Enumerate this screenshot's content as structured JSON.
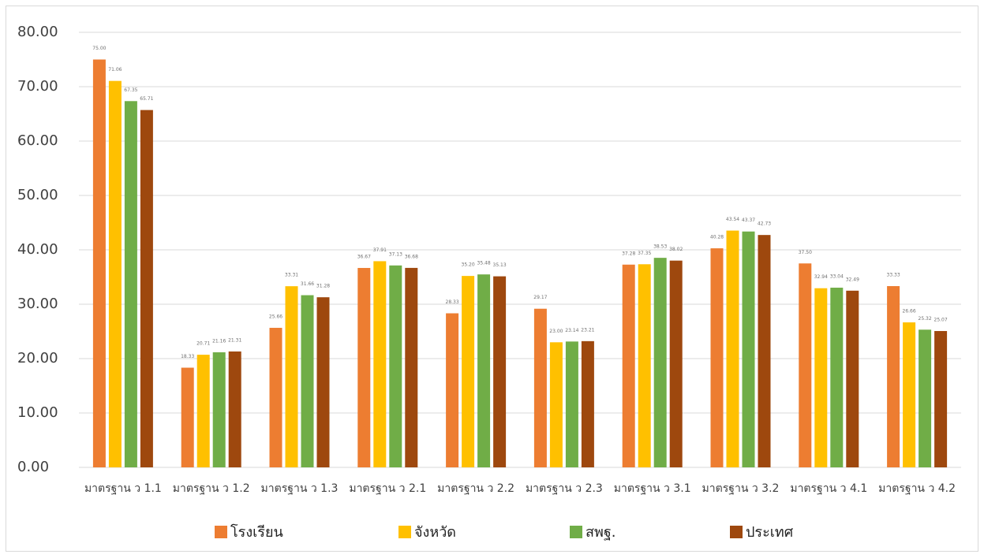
{
  "chart_data": {
    "type": "bar",
    "categories": [
      "มาตรฐาน ว 1.1",
      "มาตรฐาน ว 1.2",
      "มาตรฐาน ว 1.3",
      "มาตรฐาน ว 2.1",
      "มาตรฐาน ว 2.2",
      "มาตรฐาน ว 2.3",
      "มาตรฐาน ว 3.1",
      "มาตรฐาน ว 3.2",
      "มาตรฐาน ว 4.1",
      "มาตรฐาน ว 4.2"
    ],
    "series": [
      {
        "name": "โรงเรียน",
        "color": "#ed7d31",
        "values": [
          75,
          18.33,
          25.66,
          36.67,
          28.33,
          29.17,
          37.28,
          40.28,
          37.5,
          33.33
        ],
        "value_labels": [
          "75.00",
          "18.33",
          "25.66",
          "36.67",
          "28.33",
          "29.17",
          "37.28",
          "40.28",
          "37.50",
          "33.33"
        ]
      },
      {
        "name": "จังหวัด",
        "color": "#ffc000",
        "values": [
          71.06,
          20.71,
          33.31,
          37.91,
          35.2,
          23,
          37.35,
          43.54,
          32.94,
          26.66
        ],
        "value_labels": [
          "71.06",
          "20.71",
          "33.31",
          "37.91",
          "35.20",
          "23.00",
          "37.35",
          "43.54",
          "32.94",
          "26.66"
        ]
      },
      {
        "name": "สพฐ.",
        "color": "#70ad47",
        "values": [
          67.35,
          21.16,
          31.66,
          37.13,
          35.48,
          23.14,
          38.53,
          43.37,
          33.04,
          25.32
        ],
        "value_labels": [
          "67.35",
          "21.16",
          "31.66",
          "37.13",
          "35.48",
          "23.14",
          "38.53",
          "43.37",
          "33.04",
          "25.32"
        ]
      },
      {
        "name": "ประเทศ",
        "color": "#9e480e",
        "values": [
          65.71,
          21.31,
          31.28,
          36.68,
          35.13,
          23.21,
          38.02,
          42.73,
          32.49,
          25.07
        ],
        "value_labels": [
          "65.71",
          "21.31",
          "31.28",
          "36.68",
          "35.13",
          "23.21",
          "38.02",
          "42.73",
          "32.49",
          "25.07"
        ]
      }
    ],
    "ylim": [
      0,
      80
    ],
    "yticks": [
      {
        "value": 0,
        "label": "0.00"
      },
      {
        "value": 10,
        "label": "10.00"
      },
      {
        "value": 20,
        "label": "20.00"
      },
      {
        "value": 30,
        "label": "30.00"
      },
      {
        "value": 40,
        "label": "40.00"
      },
      {
        "value": 50,
        "label": "50.00"
      },
      {
        "value": 60,
        "label": "60.00"
      },
      {
        "value": 70,
        "label": "70.00"
      },
      {
        "value": 80,
        "label": "80.00"
      }
    ],
    "grid": true,
    "legend": "bottom"
  }
}
